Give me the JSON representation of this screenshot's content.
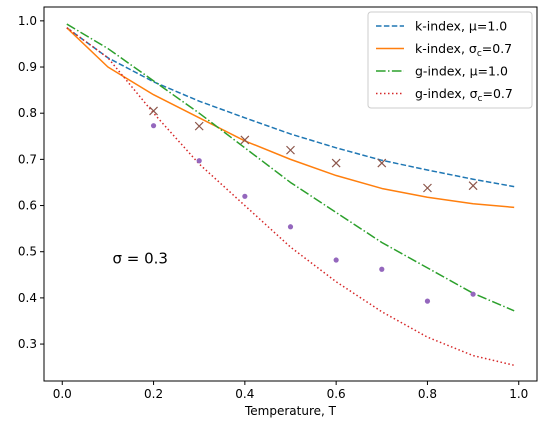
{
  "chart_data": {
    "type": "line",
    "title": "",
    "xlabel": "Temperature, T",
    "ylabel": "",
    "xlim": [
      -0.04,
      1.04
    ],
    "ylim": [
      0.22,
      1.03
    ],
    "grid": false,
    "legend_position": "top-right",
    "xticks": [
      0.0,
      0.2,
      0.4,
      0.6,
      0.8,
      1.0
    ],
    "xtick_labels": [
      "0.0",
      "0.2",
      "0.4",
      "0.6",
      "0.8",
      "1.0"
    ],
    "yticks": [
      0.3,
      0.4,
      0.5,
      0.6,
      0.7,
      0.8,
      0.9,
      1.0
    ],
    "ytick_labels": [
      "0.3",
      "0.4",
      "0.5",
      "0.6",
      "0.7",
      "0.8",
      "0.9",
      "1.0"
    ],
    "annotation": {
      "text": "σ = 0.3",
      "x": 0.11,
      "y": 0.485
    },
    "x": [
      0.01,
      0.1,
      0.2,
      0.3,
      0.4,
      0.5,
      0.6,
      0.7,
      0.8,
      0.9,
      0.99
    ],
    "series": [
      {
        "name": "k-index, μ=1.0",
        "legend_main": "k-index, μ=1.0",
        "legend_sub": "",
        "legend_tail": "",
        "style": "dashed",
        "color": "#1f77b4",
        "values": [
          0.985,
          0.92,
          0.868,
          0.826,
          0.79,
          0.755,
          0.725,
          0.698,
          0.677,
          0.657,
          0.641
        ]
      },
      {
        "name": "k-index, σc=0.7",
        "legend_main": "k-index, σ",
        "legend_sub": "c",
        "legend_tail": "=0.7",
        "style": "solid",
        "color": "#ff7f0e",
        "values": [
          0.985,
          0.9,
          0.84,
          0.79,
          0.74,
          0.7,
          0.665,
          0.637,
          0.618,
          0.604,
          0.596
        ]
      },
      {
        "name": "g-index, μ=1.0",
        "legend_main": "g-index, μ=1.0",
        "legend_sub": "",
        "legend_tail": "",
        "style": "dashdot",
        "color": "#2ca02c",
        "values": [
          0.993,
          0.94,
          0.87,
          0.8,
          0.725,
          0.65,
          0.585,
          0.52,
          0.465,
          0.41,
          0.372
        ]
      },
      {
        "name": "g-index, σc=0.7",
        "legend_main": "g-index, σ",
        "legend_sub": "c",
        "legend_tail": "=0.7",
        "style": "dotted",
        "color": "#d62728",
        "values": [
          0.985,
          0.92,
          0.8,
          0.69,
          0.6,
          0.51,
          0.435,
          0.37,
          0.315,
          0.275,
          0.254
        ]
      }
    ],
    "scatter": [
      {
        "marker": "x",
        "color": "#8c564b",
        "x": [
          0.2,
          0.3,
          0.4,
          0.5,
          0.6,
          0.7,
          0.8,
          0.9
        ],
        "y": [
          0.805,
          0.772,
          0.742,
          0.72,
          0.692,
          0.692,
          0.638,
          0.643
        ]
      },
      {
        "marker": "dot",
        "color": "#9467bd",
        "x": [
          0.2,
          0.3,
          0.4,
          0.5,
          0.6,
          0.7,
          0.8,
          0.9
        ],
        "y": [
          0.773,
          0.697,
          0.62,
          0.554,
          0.482,
          0.462,
          0.393,
          0.408
        ]
      }
    ]
  }
}
